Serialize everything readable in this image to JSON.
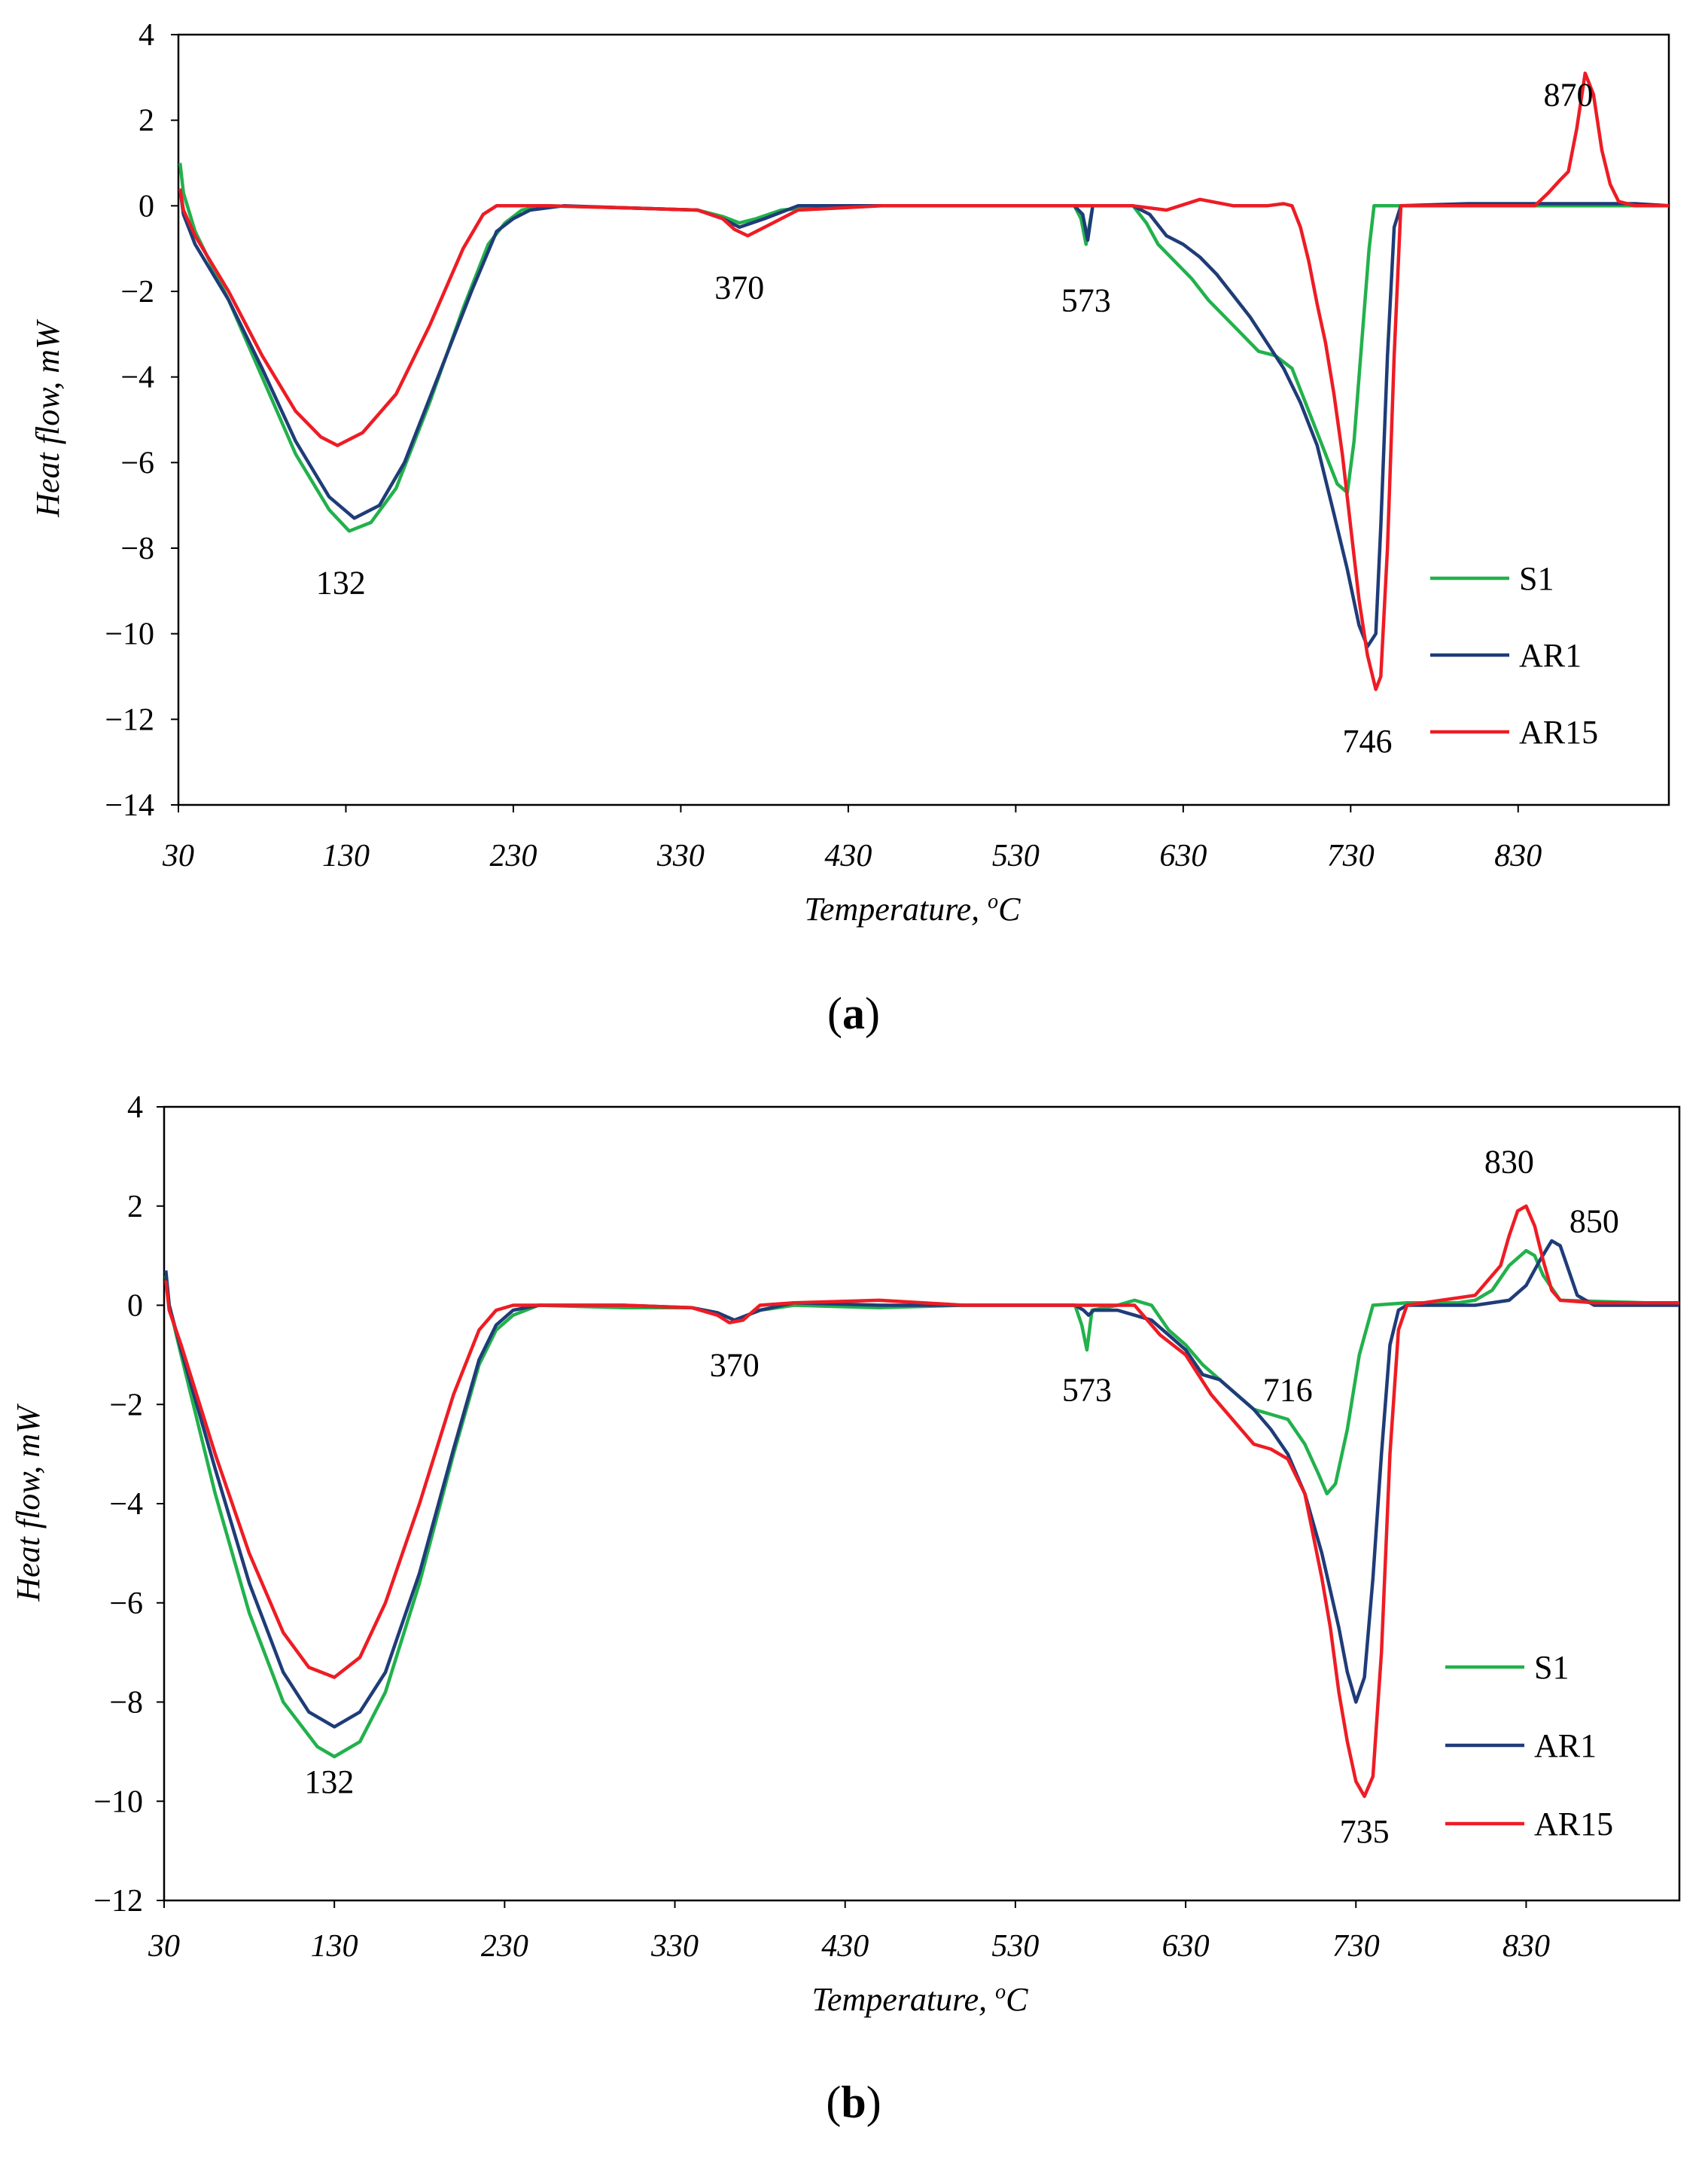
{
  "chart_data": [
    {
      "type": "line",
      "panel_label": "(a)",
      "panel_letter": "a",
      "xlabel": "Temperature, ",
      "xlabel_unit": "C",
      "xlabel_degree": "o",
      "ylabel": "Heat flow, mW",
      "xlim": [
        30,
        920
      ],
      "ylim": [
        -14,
        4
      ],
      "x_ticks": [
        "30",
        "130",
        "230",
        "330",
        "430",
        "530",
        "630",
        "730",
        "830"
      ],
      "y_ticks": [
        "4",
        "2",
        "0",
        "−2",
        "−4",
        "−6",
        "−8",
        "−10",
        "−12",
        "−14"
      ],
      "legend_position": "bottom-right",
      "annotations": [
        {
          "text": "132",
          "x": 127,
          "y": -8.8
        },
        {
          "text": "370",
          "x": 365,
          "y": -1.9
        },
        {
          "text": "573",
          "x": 572,
          "y": -2.2
        },
        {
          "text": "746",
          "x": 740,
          "y": -12.5
        },
        {
          "text": "870",
          "x": 860,
          "y": 2.6
        }
      ],
      "series": [
        {
          "name": "S1",
          "color": "#22b14c",
          "x": [
            31,
            33,
            40,
            60,
            80,
            100,
            120,
            132,
            145,
            160,
            180,
            200,
            215,
            225,
            235,
            250,
            300,
            340,
            355,
            365,
            375,
            390,
            420,
            500,
            565,
            569,
            572,
            576,
            590,
            600,
            608,
            615,
            625,
            635,
            645,
            655,
            665,
            675,
            685,
            695,
            705,
            715,
            722,
            728,
            732,
            735,
            738,
            741,
            744,
            750,
            800,
            900,
            920
          ],
          "y": [
            1.0,
            0.3,
            -0.6,
            -2.2,
            -4.0,
            -5.8,
            -7.1,
            -7.6,
            -7.4,
            -6.6,
            -4.6,
            -2.4,
            -0.9,
            -0.4,
            -0.1,
            0.0,
            -0.05,
            -0.1,
            -0.25,
            -0.4,
            -0.3,
            -0.1,
            0.0,
            0.0,
            0.0,
            -0.3,
            -0.9,
            0.0,
            0.0,
            0.0,
            -0.4,
            -0.9,
            -1.3,
            -1.7,
            -2.2,
            -2.6,
            -3.0,
            -3.4,
            -3.5,
            -3.8,
            -4.8,
            -5.8,
            -6.5,
            -6.7,
            -5.5,
            -4.0,
            -2.5,
            -1.0,
            0.0,
            0.0,
            0.0,
            0.0,
            0.0
          ]
        },
        {
          "name": "AR1",
          "color": "#1f3c78",
          "x": [
            31,
            33,
            40,
            60,
            80,
            100,
            120,
            135,
            150,
            165,
            185,
            205,
            220,
            230,
            240,
            260,
            300,
            340,
            355,
            365,
            380,
            400,
            450,
            500,
            565,
            570,
            573,
            576,
            590,
            600,
            610,
            620,
            630,
            640,
            650,
            660,
            670,
            680,
            690,
            700,
            710,
            720,
            728,
            735,
            740,
            745,
            748,
            752,
            756,
            760,
            800,
            850,
            900,
            920
          ],
          "y": [
            0.4,
            -0.2,
            -0.9,
            -2.2,
            -3.8,
            -5.5,
            -6.8,
            -7.3,
            -7.0,
            -6.0,
            -4.0,
            -2.0,
            -0.6,
            -0.3,
            -0.1,
            0.0,
            -0.05,
            -0.1,
            -0.3,
            -0.5,
            -0.3,
            0.0,
            0.0,
            0.0,
            0.0,
            -0.2,
            -0.8,
            0.0,
            0.0,
            0.0,
            -0.2,
            -0.7,
            -0.9,
            -1.2,
            -1.6,
            -2.1,
            -2.6,
            -3.2,
            -3.8,
            -4.6,
            -5.6,
            -7.2,
            -8.5,
            -9.8,
            -10.3,
            -10.0,
            -7.5,
            -3.5,
            -0.5,
            0.0,
            0.05,
            0.05,
            0.05,
            0.0
          ]
        },
        {
          "name": "AR15",
          "color": "#ee1c24",
          "x": [
            31,
            33,
            40,
            60,
            80,
            100,
            115,
            125,
            140,
            160,
            180,
            200,
            212,
            220,
            230,
            250,
            300,
            340,
            355,
            362,
            370,
            380,
            400,
            450,
            500,
            550,
            600,
            620,
            640,
            660,
            680,
            690,
            695,
            700,
            705,
            710,
            715,
            720,
            725,
            730,
            735,
            740,
            745,
            748,
            752,
            756,
            760,
            800,
            840,
            848,
            855,
            860,
            865,
            870,
            875,
            880,
            885,
            890,
            900,
            920
          ],
          "y": [
            0.4,
            -0.1,
            -0.7,
            -2.0,
            -3.5,
            -4.8,
            -5.4,
            -5.6,
            -5.3,
            -4.4,
            -2.8,
            -1.0,
            -0.2,
            0.0,
            0.0,
            0.0,
            -0.05,
            -0.1,
            -0.3,
            -0.55,
            -0.7,
            -0.5,
            -0.1,
            0.0,
            0.0,
            0.0,
            0.0,
            -0.1,
            0.15,
            0.0,
            0.0,
            0.05,
            0.0,
            -0.5,
            -1.3,
            -2.3,
            -3.2,
            -4.4,
            -5.8,
            -7.5,
            -9.2,
            -10.5,
            -11.3,
            -11.0,
            -8.0,
            -3.5,
            0.0,
            0.0,
            0.0,
            0.3,
            0.6,
            0.8,
            1.8,
            3.1,
            2.6,
            1.3,
            0.5,
            0.1,
            0.0,
            0.0
          ]
        }
      ]
    },
    {
      "type": "line",
      "panel_label": "(b)",
      "panel_letter": "b",
      "xlabel": "Temperature, ",
      "xlabel_unit": "C",
      "xlabel_degree": "o",
      "ylabel": "Heat flow, mW",
      "xlim": [
        30,
        920
      ],
      "ylim": [
        -12,
        4
      ],
      "x_ticks": [
        "30",
        "130",
        "230",
        "330",
        "430",
        "530",
        "630",
        "730",
        "830"
      ],
      "y_ticks": [
        "4",
        "2",
        "0",
        "−2",
        "−4",
        "−6",
        "−8",
        "−10",
        "−12"
      ],
      "legend_position": "bottom-right",
      "annotations": [
        {
          "text": "132",
          "x": 127,
          "y": -9.6
        },
        {
          "text": "370",
          "x": 365,
          "y": -1.2
        },
        {
          "text": "573",
          "x": 572,
          "y": -1.7
        },
        {
          "text": "716",
          "x": 690,
          "y": -1.7
        },
        {
          "text": "735",
          "x": 735,
          "y": -10.6
        },
        {
          "text": "830",
          "x": 820,
          "y": 2.9
        },
        {
          "text": "850",
          "x": 870,
          "y": 1.7
        }
      ],
      "series": [
        {
          "name": "S1",
          "color": "#22b14c",
          "x": [
            31,
            33,
            40,
            60,
            80,
            100,
            120,
            130,
            145,
            160,
            180,
            200,
            215,
            225,
            235,
            250,
            300,
            340,
            355,
            365,
            380,
            400,
            450,
            500,
            565,
            569,
            572,
            575,
            590,
            600,
            610,
            620,
            630,
            640,
            650,
            660,
            670,
            680,
            690,
            700,
            708,
            713,
            718,
            725,
            732,
            740,
            760,
            790,
            800,
            810,
            820,
            830,
            835,
            840,
            850,
            900,
            920
          ],
          "y": [
            0.6,
            0.0,
            -1.0,
            -3.8,
            -6.2,
            -8.0,
            -8.9,
            -9.1,
            -8.8,
            -7.8,
            -5.6,
            -3.0,
            -1.2,
            -0.5,
            -0.2,
            0.0,
            -0.05,
            -0.05,
            -0.15,
            -0.3,
            -0.1,
            0.0,
            -0.05,
            0.0,
            0.0,
            -0.4,
            -0.9,
            -0.1,
            0.0,
            0.1,
            0.0,
            -0.5,
            -0.8,
            -1.2,
            -1.5,
            -1.8,
            -2.1,
            -2.2,
            -2.3,
            -2.8,
            -3.4,
            -3.8,
            -3.6,
            -2.5,
            -1.0,
            0.0,
            0.05,
            0.05,
            0.1,
            0.3,
            0.8,
            1.1,
            1.0,
            0.6,
            0.1,
            0.05,
            0.05
          ]
        },
        {
          "name": "AR1",
          "color": "#1f3c78",
          "x": [
            31,
            33,
            40,
            60,
            80,
            100,
            115,
            130,
            145,
            160,
            180,
            200,
            215,
            225,
            235,
            250,
            300,
            340,
            355,
            365,
            380,
            400,
            450,
            500,
            565,
            570,
            573,
            576,
            590,
            600,
            610,
            620,
            630,
            640,
            650,
            660,
            670,
            680,
            690,
            700,
            710,
            720,
            725,
            730,
            735,
            740,
            745,
            750,
            755,
            760,
            800,
            820,
            830,
            838,
            845,
            850,
            855,
            860,
            870,
            900,
            920
          ],
          "y": [
            0.7,
            0.0,
            -0.9,
            -3.3,
            -5.6,
            -7.4,
            -8.2,
            -8.5,
            -8.2,
            -7.4,
            -5.4,
            -2.9,
            -1.1,
            -0.4,
            -0.1,
            0.0,
            0.0,
            -0.05,
            -0.15,
            -0.3,
            -0.1,
            0.05,
            0.0,
            0.0,
            0.0,
            -0.1,
            -0.2,
            -0.1,
            -0.1,
            -0.2,
            -0.3,
            -0.6,
            -0.9,
            -1.4,
            -1.5,
            -1.8,
            -2.1,
            -2.5,
            -3.0,
            -3.8,
            -5.0,
            -6.5,
            -7.4,
            -8.0,
            -7.5,
            -5.5,
            -3.0,
            -0.8,
            -0.1,
            0.0,
            0.0,
            0.1,
            0.4,
            0.9,
            1.3,
            1.2,
            0.7,
            0.2,
            0.0,
            0.0,
            0.0
          ]
        },
        {
          "name": "AR15",
          "color": "#ee1c24",
          "x": [
            31,
            33,
            40,
            60,
            80,
            100,
            115,
            130,
            145,
            160,
            180,
            200,
            215,
            225,
            235,
            250,
            300,
            340,
            355,
            362,
            370,
            380,
            400,
            450,
            500,
            550,
            600,
            615,
            630,
            645,
            660,
            670,
            680,
            690,
            700,
            710,
            715,
            720,
            725,
            730,
            735,
            740,
            745,
            750,
            755,
            760,
            800,
            815,
            820,
            825,
            830,
            835,
            840,
            845,
            850,
            870,
            900,
            920
          ],
          "y": [
            0.5,
            -0.1,
            -0.8,
            -3.0,
            -5.0,
            -6.6,
            -7.3,
            -7.5,
            -7.1,
            -6.0,
            -4.0,
            -1.8,
            -0.5,
            -0.1,
            0.0,
            0.0,
            0.0,
            -0.05,
            -0.2,
            -0.35,
            -0.3,
            0.0,
            0.05,
            0.1,
            0.0,
            0.0,
            0.0,
            -0.6,
            -1.0,
            -1.8,
            -2.4,
            -2.8,
            -2.9,
            -3.1,
            -3.8,
            -5.5,
            -6.5,
            -7.8,
            -8.8,
            -9.6,
            -9.9,
            -9.5,
            -7.0,
            -3.0,
            -0.5,
            0.0,
            0.2,
            0.8,
            1.4,
            1.9,
            2.0,
            1.6,
            0.9,
            0.3,
            0.1,
            0.05,
            0.05,
            0.05
          ]
        }
      ]
    }
  ]
}
